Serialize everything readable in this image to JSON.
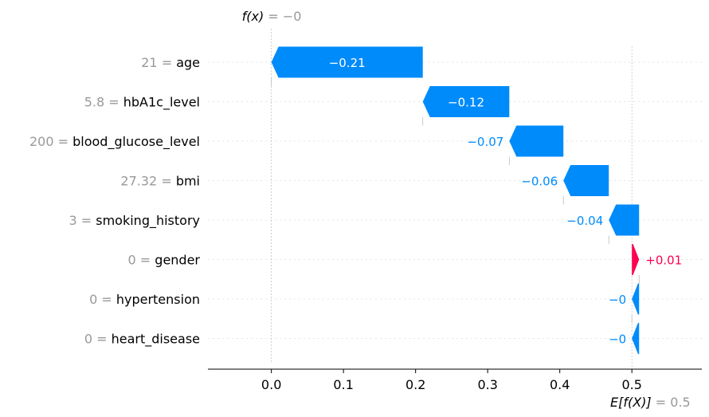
{
  "chart_data": {
    "type": "waterfall",
    "fx_label": "f(x)",
    "fx_value": "= −0",
    "base_label": "E[f(X)]",
    "base_value": "= 0.5",
    "base": 0.5,
    "final": 0.0,
    "xlim": [
      -0.088,
      0.597
    ],
    "xticks": [
      0.0,
      0.1,
      0.2,
      0.3,
      0.4,
      0.5
    ],
    "xtick_labels": [
      "0.0",
      "0.1",
      "0.2",
      "0.3",
      "0.4",
      "0.5"
    ],
    "colors": {
      "negative": "#008bfb",
      "positive": "#ff0051"
    },
    "rows": [
      {
        "value": "21",
        "feature": "age",
        "start": 0.21,
        "end": 0.0,
        "label": "−0.21",
        "sign": "neg"
      },
      {
        "value": "5.8",
        "feature": "hbA1c_level",
        "start": 0.33,
        "end": 0.21,
        "label": "−0.12",
        "sign": "neg"
      },
      {
        "value": "200",
        "feature": "blood_glucose_level",
        "start": 0.405,
        "end": 0.33,
        "label": "−0.07",
        "sign": "neg"
      },
      {
        "value": "27.32",
        "feature": "bmi",
        "start": 0.468,
        "end": 0.405,
        "label": "−0.06",
        "sign": "neg"
      },
      {
        "value": "3",
        "feature": "smoking_history",
        "start": 0.51,
        "end": 0.468,
        "label": "−0.04",
        "sign": "neg"
      },
      {
        "value": "0",
        "feature": "gender",
        "start": 0.5,
        "end": 0.51,
        "label": "+0.01",
        "sign": "pos"
      },
      {
        "value": "0",
        "feature": "hypertension",
        "start": 0.51,
        "end": 0.5,
        "label": "−0",
        "sign": "neg"
      },
      {
        "value": "0",
        "feature": "heart_disease",
        "start": 0.51,
        "end": 0.5,
        "label": "−0",
        "sign": "neg"
      }
    ]
  }
}
